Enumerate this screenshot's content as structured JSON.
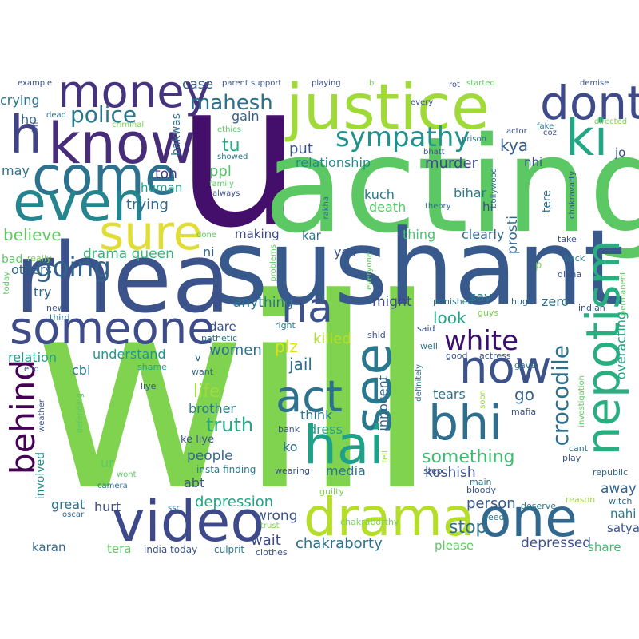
{
  "words": [
    {
      "text": "will",
      "color": "#7fd34e",
      "kind": "huge"
    },
    {
      "text": "u",
      "color": "#440f6b"
    },
    {
      "text": "acting",
      "color": "#5cc863"
    },
    {
      "text": "sushant",
      "color": "#38598c"
    },
    {
      "text": "rhea",
      "color": "#3b528b"
    },
    {
      "text": "justice",
      "color": "#a0da39"
    },
    {
      "text": "dont",
      "color": "#3e4a89"
    },
    {
      "text": "know",
      "color": "#472c7a"
    },
    {
      "text": "money",
      "color": "#46337e"
    },
    {
      "text": "h",
      "color": "#404387"
    },
    {
      "text": "come",
      "color": "#2c728e"
    },
    {
      "text": "even",
      "color": "#25858e"
    },
    {
      "text": "ki",
      "color": "#22a785"
    },
    {
      "text": "sure",
      "color": "#e1dd37"
    },
    {
      "text": "someone",
      "color": "#3e4c8a"
    },
    {
      "text": "na",
      "color": "#3b528b"
    },
    {
      "text": "video",
      "color": "#3e4989"
    },
    {
      "text": "drama",
      "color": "#b5de2b"
    },
    {
      "text": "one",
      "color": "#31688e"
    },
    {
      "text": "now",
      "color": "#3b528b"
    },
    {
      "text": "bhi",
      "color": "#2e6e8e"
    },
    {
      "text": "see",
      "color": "#2a788e"
    },
    {
      "text": "act",
      "color": "#2c728e"
    },
    {
      "text": "hai",
      "color": "#1fa088"
    },
    {
      "text": "nepotism",
      "color": "#29af7f"
    },
    {
      "text": "behind",
      "color": "#440154"
    },
    {
      "text": "sympathy",
      "color": "#21918c"
    },
    {
      "text": "police",
      "color": "#2a788e"
    },
    {
      "text": "mahesh",
      "color": "#2d708e"
    },
    {
      "text": "white",
      "color": "#3b0f70"
    },
    {
      "text": "crocodile",
      "color": "#2d718e"
    },
    {
      "text": "going",
      "color": "#33638d"
    },
    {
      "text": "drama queen",
      "color": "#34b679"
    },
    {
      "text": "tu",
      "color": "#22a884"
    },
    {
      "text": "kya",
      "color": "#365d8d"
    },
    {
      "text": "ppl",
      "color": "#52c569"
    },
    {
      "text": "put",
      "color": "#38588c"
    },
    {
      "text": "murder",
      "color": "#3f4788"
    },
    {
      "text": "relationship",
      "color": "#23898e"
    },
    {
      "text": "human",
      "color": "#1e9b8a"
    },
    {
      "text": "trying",
      "color": "#31688e"
    },
    {
      "text": "crying",
      "color": "#2c738e"
    },
    {
      "text": "case",
      "color": "#34608d"
    },
    {
      "text": "gain",
      "color": "#34608d"
    },
    {
      "text": "ho",
      "color": "#33638d"
    },
    {
      "text": "may",
      "color": "#2e6f8e"
    },
    {
      "text": "toh",
      "color": "#453781"
    },
    {
      "text": "believe",
      "color": "#5ec962"
    },
    {
      "text": "others",
      "color": "#31688e"
    },
    {
      "text": "try",
      "color": "#31688e"
    },
    {
      "text": "bad",
      "color": "#5ec962"
    },
    {
      "text": "relation",
      "color": "#1f9e89"
    },
    {
      "text": "cbi",
      "color": "#2a788e"
    },
    {
      "text": "understand",
      "color": "#1f968b"
    },
    {
      "text": "women",
      "color": "#2d718e"
    },
    {
      "text": "plz",
      "color": "#dde318"
    },
    {
      "text": "killed",
      "color": "#b5de2b"
    },
    {
      "text": "jail",
      "color": "#2e6e8e"
    },
    {
      "text": "life",
      "color": "#a0da39"
    },
    {
      "text": "truth",
      "color": "#22a884"
    },
    {
      "text": "brother",
      "color": "#2a788e"
    },
    {
      "text": "people",
      "color": "#31688e"
    },
    {
      "text": "abt",
      "color": "#3b528b"
    },
    {
      "text": "hurt",
      "color": "#3e4a89"
    },
    {
      "text": "great",
      "color": "#2d708e"
    },
    {
      "text": "involved",
      "color": "#21918c"
    },
    {
      "text": "karan",
      "color": "#31688e"
    },
    {
      "text": "depression",
      "color": "#20a386"
    },
    {
      "text": "wrong",
      "color": "#3b528b"
    },
    {
      "text": "wait",
      "color": "#3e4989"
    },
    {
      "text": "chakraborty",
      "color": "#2c728e"
    },
    {
      "text": "person",
      "color": "#38588c"
    },
    {
      "text": "stop",
      "color": "#2c728e"
    },
    {
      "text": "something",
      "color": "#3dbc74"
    },
    {
      "text": "koshish",
      "color": "#3b528b"
    },
    {
      "text": "depressed",
      "color": "#3b528b"
    },
    {
      "text": "share",
      "color": "#3dbc74"
    },
    {
      "text": "satya",
      "color": "#3b528b"
    },
    {
      "text": "nahi",
      "color": "#2a788e"
    },
    {
      "text": "away",
      "color": "#33638d"
    },
    {
      "text": "overacting",
      "color": "#20a386"
    },
    {
      "text": "zero",
      "color": "#2c728e"
    },
    {
      "text": "look",
      "color": "#20a386"
    },
    {
      "text": "say",
      "color": "#2a788e"
    },
    {
      "text": "tears",
      "color": "#2c728e"
    },
    {
      "text": "go",
      "color": "#33638d"
    },
    {
      "text": "innocent",
      "color": "#33638d"
    },
    {
      "text": "think",
      "color": "#2a788e"
    },
    {
      "text": "dress",
      "color": "#1fa088"
    },
    {
      "text": "media",
      "color": "#2c728e"
    },
    {
      "text": "ko",
      "color": "#2c728e"
    },
    {
      "text": "yes",
      "color": "#3b528b"
    },
    {
      "text": "might",
      "color": "#3e4a89"
    },
    {
      "text": "clearly",
      "color": "#31688e"
    },
    {
      "text": "thing",
      "color": "#4ac16d"
    },
    {
      "text": "kar",
      "color": "#2c728e"
    },
    {
      "text": "making",
      "color": "#3e4989"
    },
    {
      "text": "anything",
      "color": "#2c728e"
    },
    {
      "text": "dare",
      "color": "#3b528b"
    },
    {
      "text": "ni",
      "color": "#33638d"
    },
    {
      "text": "prosti",
      "color": "#31688e"
    },
    {
      "text": "kuch",
      "color": "#2a788e"
    },
    {
      "text": "death",
      "color": "#56c667"
    },
    {
      "text": "bihar",
      "color": "#2a788e"
    },
    {
      "text": "hi",
      "color": "#3e4a89"
    },
    {
      "text": "nhi",
      "color": "#3b528b"
    },
    {
      "text": "jo",
      "color": "#3b528b"
    },
    {
      "text": "tere",
      "color": "#2c728e"
    },
    {
      "text": "bakwas",
      "color": "#2c728e"
    },
    {
      "text": "ke liye",
      "color": "#3b528b"
    },
    {
      "text": "insta finding",
      "color": "#2a788e"
    },
    {
      "text": "ur",
      "color": "#5ec962"
    },
    {
      "text": "v",
      "color": "#2e6e8e"
    },
    {
      "text": "pathetic",
      "color": "#2c728e"
    },
    {
      "text": "shame",
      "color": "#20a386"
    },
    {
      "text": "want",
      "color": "#31688e"
    },
    {
      "text": "liye",
      "color": "#3b528b"
    },
    {
      "text": "tera",
      "color": "#5ec962"
    },
    {
      "text": "india today",
      "color": "#3b528b"
    },
    {
      "text": "culprit",
      "color": "#2a788e"
    },
    {
      "text": "clothes",
      "color": "#3b528b"
    },
    {
      "text": "please",
      "color": "#5ec962"
    },
    {
      "text": "trust",
      "color": "#7ad151"
    },
    {
      "text": "ssr",
      "color": "#2c728e"
    },
    {
      "text": "oscar",
      "color": "#31688e"
    },
    {
      "text": "camera",
      "color": "#2c728e"
    },
    {
      "text": "wont",
      "color": "#5ec962"
    },
    {
      "text": "end",
      "color": "#3b528b"
    },
    {
      "text": "defending",
      "color": "#5ec962"
    },
    {
      "text": "weather",
      "color": "#3b528b"
    },
    {
      "text": "bank",
      "color": "#3b528b"
    },
    {
      "text": "wearing",
      "color": "#3b528b"
    },
    {
      "text": "guilty",
      "color": "#7ad151"
    },
    {
      "text": "chakraborthy",
      "color": "#7ad151"
    },
    {
      "text": "step",
      "color": "#3b528b"
    },
    {
      "text": "bloody",
      "color": "#3b528b"
    },
    {
      "text": "main",
      "color": "#2c728e"
    },
    {
      "text": "deserve",
      "color": "#2a788e"
    },
    {
      "text": "need",
      "color": "#2a788e"
    },
    {
      "text": "reason",
      "color": "#a0da39"
    },
    {
      "text": "witch",
      "color": "#31688e"
    },
    {
      "text": "republic",
      "color": "#31688e"
    },
    {
      "text": "play",
      "color": "#3b528b"
    },
    {
      "text": "cant",
      "color": "#2c728e"
    },
    {
      "text": "investigation",
      "color": "#5ec962"
    },
    {
      "text": "mafia",
      "color": "#3b528b"
    },
    {
      "text": "soon",
      "color": "#a0da39"
    },
    {
      "text": "tell",
      "color": "#a0da39"
    },
    {
      "text": "gave",
      "color": "#2c728e"
    },
    {
      "text": "actress",
      "color": "#3b528b"
    },
    {
      "text": "good",
      "color": "#3b528b"
    },
    {
      "text": "well",
      "color": "#2a788e"
    },
    {
      "text": "said",
      "color": "#3b528b"
    },
    {
      "text": "shld",
      "color": "#3b528b"
    },
    {
      "text": "definitely",
      "color": "#2c728e"
    },
    {
      "text": "punished",
      "color": "#2a788e"
    },
    {
      "text": "guys",
      "color": "#7ad151"
    },
    {
      "text": "huge",
      "color": "#31688e"
    },
    {
      "text": "indian",
      "color": "#3b528b"
    },
    {
      "text": "permanent",
      "color": "#5ec962"
    },
    {
      "text": "right",
      "color": "#2a788e"
    },
    {
      "text": "news",
      "color": "#3b528b"
    },
    {
      "text": "third",
      "color": "#2c728e"
    },
    {
      "text": "today",
      "color": "#5ec962"
    },
    {
      "text": "really",
      "color": "#7ad151"
    },
    {
      "text": "problems",
      "color": "#5ec962"
    },
    {
      "text": "everyone",
      "color": "#5ec962"
    },
    {
      "text": "dikha",
      "color": "#3b528b"
    },
    {
      "text": "back",
      "color": "#2a788e"
    },
    {
      "text": "p",
      "color": "#7ad151"
    },
    {
      "text": "take",
      "color": "#3b528b"
    },
    {
      "text": "done",
      "color": "#5ec962"
    },
    {
      "text": "rakha",
      "color": "#2c728e"
    },
    {
      "text": "theory",
      "color": "#2c728e"
    },
    {
      "text": "bollywood",
      "color": "#2c728e"
    },
    {
      "text": "chakravarty",
      "color": "#3b528b"
    },
    {
      "text": "bhatt",
      "color": "#3b528b"
    },
    {
      "text": "prison",
      "color": "#2c728e"
    },
    {
      "text": "actor",
      "color": "#3b528b"
    },
    {
      "text": "coz",
      "color": "#3b528b"
    },
    {
      "text": "fake",
      "color": "#2c728e"
    },
    {
      "text": "directed",
      "color": "#7ad151"
    },
    {
      "text": "demise",
      "color": "#3b528b"
    },
    {
      "text": "started",
      "color": "#5ec962"
    },
    {
      "text": "rot",
      "color": "#3b528b"
    },
    {
      "text": "every",
      "color": "#3b528b"
    },
    {
      "text": "b",
      "color": "#7ad151"
    },
    {
      "text": "playing",
      "color": "#3b528b"
    },
    {
      "text": "parent support",
      "color": "#3b528b"
    },
    {
      "text": "example",
      "color": "#3b528b"
    },
    {
      "text": "dead",
      "color": "#2c728e"
    },
    {
      "text": "criminal",
      "color": "#7ad151"
    },
    {
      "text": "ethics",
      "color": "#5ec962"
    },
    {
      "text": "showed",
      "color": "#2a788e"
    },
    {
      "text": "family",
      "color": "#5ec962"
    },
    {
      "text": "always",
      "color": "#3b528b"
    },
    {
      "text": "abhi",
      "color": "#3b528b"
    }
  ]
}
